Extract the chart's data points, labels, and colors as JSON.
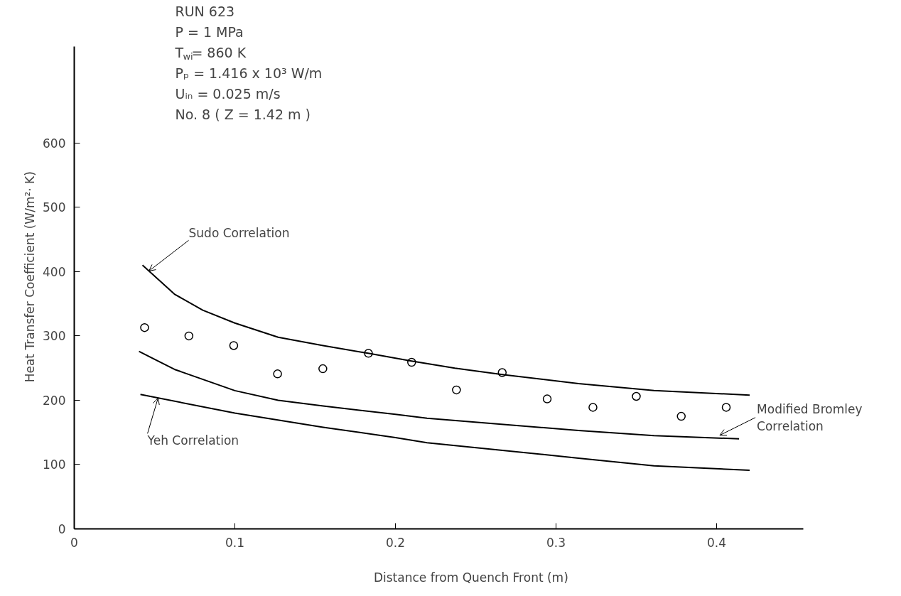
{
  "chart_data": {
    "type": "line",
    "xlabel": "Distance  from  Quench  Front      (m)",
    "ylabel": "Heat   Transfer   Coefficient   (W/m²· K)",
    "annotations": [
      "RUN 623",
      "P   = 1 MPa",
      "T$_{wi}$= 860 K",
      "Pₚ = 1.416 x 10³ W/m",
      "Uᵢₙ = 0.025 m/s",
      "No. 8  ( Z = 1.42 m )"
    ],
    "xlim": [
      0,
      0.454
    ],
    "ylim": [
      0,
      750
    ],
    "xticks": [
      0,
      0.1,
      0.2,
      0.3,
      0.4
    ],
    "yticks": [
      0,
      100,
      200,
      300,
      400,
      500,
      600
    ],
    "grid": false,
    "series": [
      {
        "type": "scatter",
        "marker": "circle",
        "color": "#000000",
        "x": [
          0.0438,
          0.0714,
          0.0993,
          0.1266,
          0.1548,
          0.1832,
          0.2101,
          0.238,
          0.2665,
          0.2945,
          0.323,
          0.35,
          0.378,
          0.406
        ],
        "values": [
          313,
          300,
          285,
          241,
          249,
          273,
          259,
          216,
          243,
          202,
          189,
          206,
          175,
          189
        ]
      },
      {
        "name": "Sudo Correlation",
        "color": "#000000",
        "line_style": "solid",
        "x": [
          0.0425,
          0.0624,
          0.08,
          0.1,
          0.127,
          0.155,
          0.183,
          0.21,
          0.237,
          0.2665,
          0.314,
          0.361,
          0.4206
        ],
        "values": [
          410,
          365,
          340,
          320,
          298,
          285,
          273,
          261,
          250,
          240,
          226,
          215,
          208
        ]
      },
      {
        "name": "Modified Bromley Correlation",
        "color": "#000000",
        "line_style": "solid",
        "x": [
          0.0403,
          0.0624,
          0.1,
          0.127,
          0.155,
          0.2,
          0.2197,
          0.314,
          0.361,
          0.414
        ],
        "values": [
          276,
          248,
          215,
          200,
          191,
          178,
          172,
          153,
          145,
          140
        ]
      },
      {
        "name": "Yeh Correlation",
        "color": "#000000",
        "line_style": "solid",
        "x": [
          0.0412,
          0.1,
          0.155,
          0.2,
          0.2197,
          0.314,
          0.361,
          0.4206
        ],
        "values": [
          209,
          180,
          158,
          142,
          134,
          110,
          98,
          91
        ]
      }
    ]
  }
}
